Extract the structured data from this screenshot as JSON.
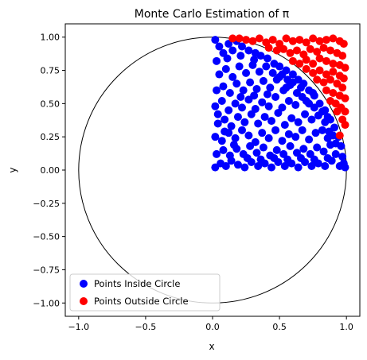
{
  "chart_data": {
    "type": "scatter",
    "title": "Monte Carlo Estimation of π",
    "xlabel": "x",
    "ylabel": "y",
    "xlim": [
      -1.1,
      1.1
    ],
    "ylim": [
      -1.1,
      1.1
    ],
    "grid": false,
    "legend_position": "lower-left",
    "aspect": "equal",
    "x_ticks": [
      {
        "value": -1.0,
        "label": "−1.0"
      },
      {
        "value": -0.5,
        "label": "−0.5"
      },
      {
        "value": 0.0,
        "label": "0.0"
      },
      {
        "value": 0.5,
        "label": "0.5"
      },
      {
        "value": 1.0,
        "label": "1.0"
      }
    ],
    "y_ticks": [
      {
        "value": -1.0,
        "label": "−1.00"
      },
      {
        "value": -0.75,
        "label": "−0.75"
      },
      {
        "value": -0.5,
        "label": "−0.50"
      },
      {
        "value": -0.25,
        "label": "−0.25"
      },
      {
        "value": 0.0,
        "label": "0.00"
      },
      {
        "value": 0.25,
        "label": "0.25"
      },
      {
        "value": 0.5,
        "label": "0.50"
      },
      {
        "value": 0.75,
        "label": "0.75"
      },
      {
        "value": 1.0,
        "label": "1.00"
      }
    ],
    "circle": {
      "center": [
        0,
        0
      ],
      "radius": 1,
      "color": "#000000"
    },
    "series": [
      {
        "name": "Points Inside Circle",
        "color": "#0000ff",
        "points": [
          [
            0.02,
            0.98
          ],
          [
            0.05,
            0.93
          ],
          [
            0.08,
            0.88
          ],
          [
            0.03,
            0.82
          ],
          [
            0.12,
            0.95
          ],
          [
            0.15,
            0.9
          ],
          [
            0.18,
            0.97
          ],
          [
            0.22,
            0.93
          ],
          [
            0.27,
            0.9
          ],
          [
            0.32,
            0.88
          ],
          [
            0.36,
            0.86
          ],
          [
            0.41,
            0.84
          ],
          [
            0.46,
            0.8
          ],
          [
            0.5,
            0.78
          ],
          [
            0.55,
            0.75
          ],
          [
            0.6,
            0.72
          ],
          [
            0.64,
            0.68
          ],
          [
            0.68,
            0.65
          ],
          [
            0.72,
            0.6
          ],
          [
            0.76,
            0.56
          ],
          [
            0.8,
            0.5
          ],
          [
            0.84,
            0.45
          ],
          [
            0.88,
            0.38
          ],
          [
            0.91,
            0.32
          ],
          [
            0.94,
            0.25
          ],
          [
            0.96,
            0.18
          ],
          [
            0.97,
            0.1
          ],
          [
            0.98,
            0.05
          ],
          [
            0.99,
            0.02
          ],
          [
            0.95,
            0.03
          ],
          [
            0.02,
            0.02
          ],
          [
            0.06,
            0.05
          ],
          [
            0.1,
            0.03
          ],
          [
            0.14,
            0.07
          ],
          [
            0.19,
            0.04
          ],
          [
            0.24,
            0.02
          ],
          [
            0.29,
            0.06
          ],
          [
            0.34,
            0.03
          ],
          [
            0.39,
            0.05
          ],
          [
            0.44,
            0.02
          ],
          [
            0.49,
            0.06
          ],
          [
            0.54,
            0.03
          ],
          [
            0.59,
            0.05
          ],
          [
            0.64,
            0.02
          ],
          [
            0.69,
            0.06
          ],
          [
            0.74,
            0.03
          ],
          [
            0.79,
            0.05
          ],
          [
            0.84,
            0.03
          ],
          [
            0.89,
            0.07
          ],
          [
            0.92,
            0.12
          ],
          [
            0.03,
            0.12
          ],
          [
            0.08,
            0.15
          ],
          [
            0.13,
            0.11
          ],
          [
            0.18,
            0.16
          ],
          [
            0.23,
            0.12
          ],
          [
            0.28,
            0.18
          ],
          [
            0.33,
            0.13
          ],
          [
            0.38,
            0.17
          ],
          [
            0.43,
            0.11
          ],
          [
            0.48,
            0.15
          ],
          [
            0.53,
            0.12
          ],
          [
            0.58,
            0.18
          ],
          [
            0.63,
            0.13
          ],
          [
            0.68,
            0.16
          ],
          [
            0.73,
            0.12
          ],
          [
            0.78,
            0.17
          ],
          [
            0.83,
            0.14
          ],
          [
            0.88,
            0.19
          ],
          [
            0.92,
            0.2
          ],
          [
            0.86,
            0.24
          ],
          [
            0.02,
            0.25
          ],
          [
            0.07,
            0.22
          ],
          [
            0.12,
            0.28
          ],
          [
            0.17,
            0.24
          ],
          [
            0.22,
            0.3
          ],
          [
            0.27,
            0.26
          ],
          [
            0.32,
            0.21
          ],
          [
            0.37,
            0.28
          ],
          [
            0.42,
            0.24
          ],
          [
            0.47,
            0.3
          ],
          [
            0.52,
            0.22
          ],
          [
            0.57,
            0.27
          ],
          [
            0.62,
            0.25
          ],
          [
            0.67,
            0.3
          ],
          [
            0.72,
            0.23
          ],
          [
            0.77,
            0.28
          ],
          [
            0.82,
            0.3
          ],
          [
            0.87,
            0.29
          ],
          [
            0.9,
            0.26
          ],
          [
            0.84,
            0.36
          ],
          [
            0.04,
            0.35
          ],
          [
            0.09,
            0.38
          ],
          [
            0.14,
            0.33
          ],
          [
            0.19,
            0.4
          ],
          [
            0.24,
            0.36
          ],
          [
            0.29,
            0.42
          ],
          [
            0.34,
            0.35
          ],
          [
            0.39,
            0.4
          ],
          [
            0.44,
            0.37
          ],
          [
            0.49,
            0.43
          ],
          [
            0.54,
            0.34
          ],
          [
            0.59,
            0.39
          ],
          [
            0.64,
            0.36
          ],
          [
            0.69,
            0.42
          ],
          [
            0.74,
            0.38
          ],
          [
            0.79,
            0.41
          ],
          [
            0.82,
            0.44
          ],
          [
            0.86,
            0.4
          ],
          [
            0.76,
            0.47
          ],
          [
            0.7,
            0.52
          ],
          [
            0.02,
            0.48
          ],
          [
            0.07,
            0.52
          ],
          [
            0.12,
            0.45
          ],
          [
            0.17,
            0.5
          ],
          [
            0.22,
            0.47
          ],
          [
            0.27,
            0.53
          ],
          [
            0.32,
            0.46
          ],
          [
            0.37,
            0.51
          ],
          [
            0.42,
            0.48
          ],
          [
            0.47,
            0.55
          ],
          [
            0.52,
            0.47
          ],
          [
            0.57,
            0.52
          ],
          [
            0.62,
            0.49
          ],
          [
            0.67,
            0.55
          ],
          [
            0.72,
            0.5
          ],
          [
            0.75,
            0.58
          ],
          [
            0.66,
            0.62
          ],
          [
            0.6,
            0.66
          ],
          [
            0.56,
            0.68
          ],
          [
            0.52,
            0.72
          ],
          [
            0.03,
            0.6
          ],
          [
            0.08,
            0.63
          ],
          [
            0.13,
            0.58
          ],
          [
            0.18,
            0.65
          ],
          [
            0.23,
            0.6
          ],
          [
            0.28,
            0.66
          ],
          [
            0.33,
            0.61
          ],
          [
            0.38,
            0.67
          ],
          [
            0.43,
            0.62
          ],
          [
            0.48,
            0.68
          ],
          [
            0.53,
            0.6
          ],
          [
            0.58,
            0.64
          ],
          [
            0.63,
            0.58
          ],
          [
            0.05,
            0.72
          ],
          [
            0.1,
            0.76
          ],
          [
            0.15,
            0.7
          ],
          [
            0.2,
            0.78
          ],
          [
            0.25,
            0.73
          ],
          [
            0.3,
            0.79
          ],
          [
            0.35,
            0.74
          ],
          [
            0.4,
            0.78
          ],
          [
            0.45,
            0.73
          ],
          [
            0.5,
            0.7
          ],
          [
            0.55,
            0.62
          ],
          [
            0.04,
            0.42
          ],
          [
            0.09,
            0.29
          ],
          [
            0.16,
            0.19
          ],
          [
            0.26,
            0.09
          ],
          [
            0.36,
            0.08
          ],
          [
            0.46,
            0.09
          ],
          [
            0.56,
            0.08
          ],
          [
            0.66,
            0.09
          ],
          [
            0.76,
            0.08
          ],
          [
            0.86,
            0.09
          ],
          [
            0.21,
            0.55
          ],
          [
            0.31,
            0.56
          ],
          [
            0.41,
            0.57
          ],
          [
            0.11,
            0.84
          ],
          [
            0.21,
            0.86
          ],
          [
            0.31,
            0.83
          ]
        ]
      },
      {
        "name": "Points Outside Circle",
        "color": "#ff0000",
        "points": [
          [
            0.15,
            0.99
          ],
          [
            0.2,
            0.99
          ],
          [
            0.25,
            0.98
          ],
          [
            0.3,
            0.97
          ],
          [
            0.35,
            0.99
          ],
          [
            0.4,
            0.96
          ],
          [
            0.45,
            0.98
          ],
          [
            0.5,
            0.95
          ],
          [
            0.55,
            0.99
          ],
          [
            0.6,
            0.97
          ],
          [
            0.65,
            0.98
          ],
          [
            0.7,
            0.96
          ],
          [
            0.75,
            0.99
          ],
          [
            0.8,
            0.97
          ],
          [
            0.85,
            0.98
          ],
          [
            0.9,
            0.99
          ],
          [
            0.95,
            0.97
          ],
          [
            0.98,
            0.95
          ],
          [
            0.42,
            0.92
          ],
          [
            0.48,
            0.9
          ],
          [
            0.53,
            0.91
          ],
          [
            0.58,
            0.88
          ],
          [
            0.63,
            0.9
          ],
          [
            0.68,
            0.87
          ],
          [
            0.73,
            0.91
          ],
          [
            0.78,
            0.89
          ],
          [
            0.83,
            0.92
          ],
          [
            0.88,
            0.9
          ],
          [
            0.93,
            0.88
          ],
          [
            0.97,
            0.86
          ],
          [
            0.6,
            0.82
          ],
          [
            0.65,
            0.8
          ],
          [
            0.7,
            0.83
          ],
          [
            0.75,
            0.8
          ],
          [
            0.8,
            0.84
          ],
          [
            0.85,
            0.82
          ],
          [
            0.9,
            0.8
          ],
          [
            0.95,
            0.79
          ],
          [
            0.99,
            0.77
          ],
          [
            0.7,
            0.76
          ],
          [
            0.75,
            0.73
          ],
          [
            0.8,
            0.75
          ],
          [
            0.85,
            0.72
          ],
          [
            0.9,
            0.74
          ],
          [
            0.95,
            0.71
          ],
          [
            0.98,
            0.69
          ],
          [
            0.78,
            0.68
          ],
          [
            0.83,
            0.66
          ],
          [
            0.88,
            0.68
          ],
          [
            0.93,
            0.65
          ],
          [
            0.97,
            0.62
          ],
          [
            0.85,
            0.6
          ],
          [
            0.9,
            0.58
          ],
          [
            0.95,
            0.56
          ],
          [
            0.99,
            0.54
          ],
          [
            0.88,
            0.52
          ],
          [
            0.92,
            0.5
          ],
          [
            0.96,
            0.47
          ],
          [
            0.99,
            0.44
          ],
          [
            0.93,
            0.44
          ],
          [
            0.97,
            0.38
          ],
          [
            0.99,
            0.34
          ],
          [
            0.95,
            0.26
          ]
        ]
      }
    ]
  },
  "legend": {
    "inside_label": "Points Inside Circle",
    "outside_label": "Points Outside Circle"
  }
}
